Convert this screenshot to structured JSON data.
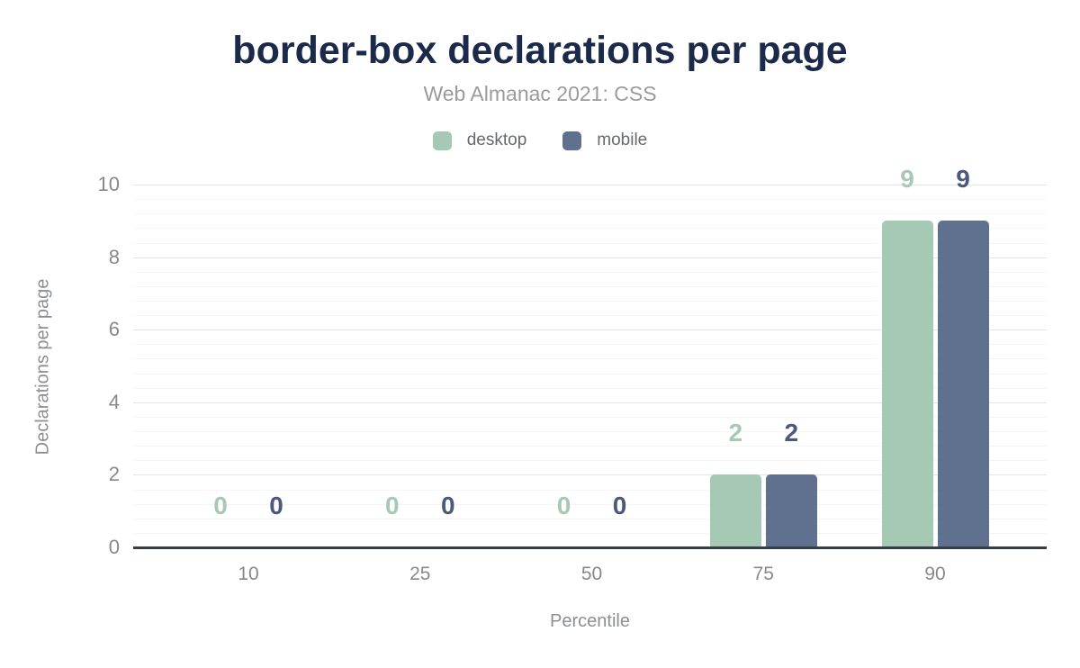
{
  "header": {
    "title": "border-box declarations per page",
    "subtitle": "Web Almanac 2021: CSS"
  },
  "legend": {
    "items": [
      {
        "label": "desktop",
        "color": "#a6c9b5"
      },
      {
        "label": "mobile",
        "color": "#60708f"
      }
    ]
  },
  "axes": {
    "x_title": "Percentile",
    "y_title": "Declarations per page"
  },
  "colors": {
    "title": "#1b2a4a",
    "subtitle": "#9b9b9b",
    "tick_label": "#85888c",
    "axis_title": "#8b8f94",
    "major_grid": "#e5e5e5",
    "minor_grid": "#f6f6f6",
    "baseline": "#363d45",
    "background": "#ffffff"
  },
  "chart_data": {
    "type": "bar",
    "title": "border-box declarations per page",
    "subtitle": "Web Almanac 2021: CSS",
    "xlabel": "Percentile",
    "ylabel": "Declarations per page",
    "categories": [
      "10",
      "25",
      "50",
      "75",
      "90"
    ],
    "series": [
      {
        "name": "desktop",
        "color": "#a6c9b5",
        "label_color": "#a6c9b5",
        "values": [
          0,
          0,
          0,
          2,
          9
        ]
      },
      {
        "name": "mobile",
        "color": "#60708f",
        "label_color": "#4a597c",
        "values": [
          0,
          0,
          0,
          2,
          9
        ]
      }
    ],
    "ylim": [
      0,
      10
    ],
    "yticks": [
      0,
      2,
      4,
      6,
      8,
      10
    ],
    "minor_tick_interval": 0.4,
    "grid": true,
    "legend_position": "top",
    "data_labels": true
  }
}
